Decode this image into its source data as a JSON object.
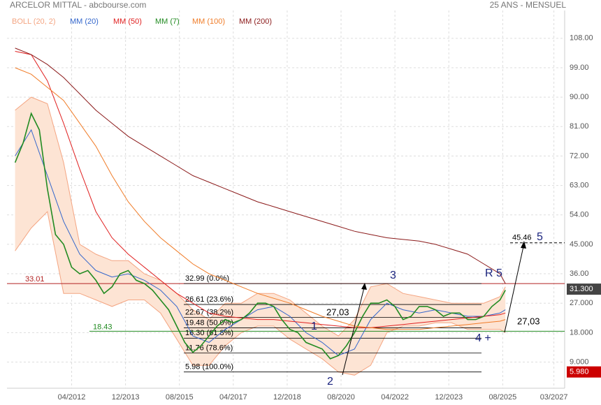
{
  "chart_data": {
    "type": "line",
    "title": "ARCELOR MITTAL - abcbourse.com",
    "subtitle": "25 ANS - MENSUEL",
    "xlim": [
      "2010-04",
      "2027-07"
    ],
    "ylim": [
      1,
      116.5
    ],
    "grid": true,
    "xticks": [
      {
        "value": "2012-04",
        "label": "04/2012"
      },
      {
        "value": "2013-12",
        "label": "12/2013"
      },
      {
        "value": "2015-08",
        "label": "08/2015"
      },
      {
        "value": "2017-04",
        "label": "04/2017"
      },
      {
        "value": "2018-12",
        "label": "12/2018"
      },
      {
        "value": "2020-08",
        "label": "08/2020"
      },
      {
        "value": "2022-04",
        "label": "04/2022"
      },
      {
        "value": "2023-12",
        "label": "12/2023"
      },
      {
        "value": "2025-08",
        "label": "08/2025"
      },
      {
        "value": "2027-03",
        "label": "03/2027"
      }
    ],
    "yticks": [
      {
        "value": 108,
        "label": "108.00"
      },
      {
        "value": 99,
        "label": "99.00"
      },
      {
        "value": 90,
        "label": "90.00"
      },
      {
        "value": 81,
        "label": "81.00"
      },
      {
        "value": 72,
        "label": "72.00"
      },
      {
        "value": 63,
        "label": "63.00"
      },
      {
        "value": 54,
        "label": "54.00"
      },
      {
        "value": 45,
        "label": "45.000"
      },
      {
        "value": 36,
        "label": "36.00"
      },
      {
        "value": 27,
        "label": "27.000"
      },
      {
        "value": 18,
        "label": "18.000"
      },
      {
        "value": 9,
        "label": "9.000"
      }
    ],
    "band": {
      "name": "BOLL (20, 2)",
      "color": "#f4a582",
      "fill": "#fde4d4",
      "x": [
        "2010-07",
        "2011-01",
        "2011-07",
        "2012-01",
        "2012-07",
        "2013-01",
        "2013-07",
        "2014-01",
        "2014-07",
        "2015-01",
        "2015-07",
        "2016-01",
        "2016-07",
        "2017-01",
        "2017-07",
        "2018-01",
        "2018-07",
        "2019-01",
        "2019-07",
        "2020-01",
        "2020-07",
        "2021-01",
        "2021-07",
        "2022-01",
        "2022-07",
        "2023-01",
        "2023-07",
        "2024-01",
        "2024-07",
        "2025-01",
        "2025-07",
        "2025-09"
      ],
      "upper": [
        86,
        90,
        88,
        70,
        45,
        42,
        40,
        40,
        36,
        34,
        30,
        25,
        22,
        27,
        27,
        30,
        30,
        28,
        24,
        20,
        17,
        22,
        32,
        33,
        30,
        29,
        28,
        27,
        27,
        27,
        29,
        32
      ],
      "lower": [
        43,
        50,
        55,
        30,
        30,
        28,
        26,
        28,
        28,
        24,
        16,
        8,
        8,
        14,
        18,
        20,
        20,
        16,
        13,
        10,
        6,
        5,
        8,
        18,
        20,
        20,
        21,
        21,
        19,
        19,
        19,
        18
      ]
    },
    "series": [
      {
        "name": "MM (20)",
        "color": "#3366cc",
        "x": [
          "2010-07",
          "2011-01",
          "2011-07",
          "2012-01",
          "2012-07",
          "2013-01",
          "2013-07",
          "2014-01",
          "2014-07",
          "2015-01",
          "2015-07",
          "2016-01",
          "2016-07",
          "2017-01",
          "2017-07",
          "2018-01",
          "2018-07",
          "2019-01",
          "2019-07",
          "2020-01",
          "2020-07",
          "2021-01",
          "2021-07",
          "2022-01",
          "2022-07",
          "2023-01",
          "2023-07",
          "2024-01",
          "2024-07",
          "2025-01",
          "2025-07",
          "2025-09"
        ],
        "values": [
          72,
          80,
          66,
          52,
          42,
          37,
          35,
          36,
          34,
          31,
          26,
          17,
          15,
          19,
          22,
          25,
          26,
          23,
          18,
          15,
          11,
          13,
          22,
          27,
          25,
          24,
          25,
          24,
          23,
          23,
          24,
          25
        ]
      },
      {
        "name": "MM (50)",
        "color": "#e02020",
        "x": [
          "2010-07",
          "2011-01",
          "2011-07",
          "2012-01",
          "2012-07",
          "2013-01",
          "2013-07",
          "2014-01",
          "2014-07",
          "2015-01",
          "2015-07",
          "2016-01",
          "2016-07",
          "2017-01",
          "2017-07",
          "2018-01",
          "2018-07",
          "2019-01",
          "2019-07",
          "2020-01",
          "2020-07",
          "2021-01",
          "2021-07",
          "2022-01",
          "2022-07",
          "2023-01",
          "2023-07",
          "2024-01",
          "2024-07",
          "2025-01",
          "2025-07",
          "2025-09"
        ],
        "values": [
          104,
          103,
          95,
          82,
          68,
          55,
          47,
          42,
          38,
          34,
          30,
          27,
          24,
          23,
          22.5,
          22,
          22,
          21.5,
          21,
          20.5,
          20,
          19.5,
          19.5,
          20,
          20.5,
          21,
          21.5,
          22,
          22.5,
          23,
          23.5,
          24
        ]
      },
      {
        "name": "MM (7)",
        "color": "#228b22",
        "x": [
          "2010-07",
          "2010-10",
          "2011-01",
          "2011-04",
          "2011-07",
          "2011-10",
          "2012-01",
          "2012-04",
          "2012-07",
          "2012-10",
          "2013-01",
          "2013-04",
          "2013-07",
          "2013-10",
          "2014-01",
          "2014-04",
          "2014-07",
          "2014-10",
          "2015-01",
          "2015-04",
          "2015-07",
          "2015-10",
          "2016-01",
          "2016-04",
          "2016-07",
          "2016-10",
          "2017-01",
          "2017-04",
          "2017-07",
          "2017-10",
          "2018-01",
          "2018-04",
          "2018-07",
          "2018-10",
          "2019-01",
          "2019-04",
          "2019-07",
          "2019-10",
          "2020-01",
          "2020-04",
          "2020-07",
          "2020-10",
          "2021-01",
          "2021-04",
          "2021-07",
          "2021-10",
          "2022-01",
          "2022-04",
          "2022-07",
          "2022-10",
          "2023-01",
          "2023-04",
          "2023-07",
          "2023-10",
          "2024-01",
          "2024-04",
          "2024-07",
          "2024-10",
          "2025-01",
          "2025-04",
          "2025-07",
          "2025-09"
        ],
        "values": [
          70,
          76,
          85,
          80,
          62,
          48,
          45,
          38,
          36,
          37,
          34,
          30,
          32,
          36,
          37,
          34,
          33,
          31,
          28,
          25,
          20,
          15,
          12,
          14,
          17,
          20,
          22,
          21,
          22,
          24,
          27,
          27,
          26,
          22,
          19,
          18,
          15,
          14,
          13,
          10,
          11,
          14,
          18,
          23,
          27,
          27,
          28,
          26,
          22,
          23,
          26,
          26,
          25,
          23,
          24,
          24,
          22,
          22,
          23,
          26,
          28,
          31
        ]
      },
      {
        "name": "MM (100)",
        "color": "#f07c28",
        "x": [
          "2010-07",
          "2011-01",
          "2011-07",
          "2012-01",
          "2012-07",
          "2013-01",
          "2013-07",
          "2014-01",
          "2014-07",
          "2015-01",
          "2015-07",
          "2016-01",
          "2016-07",
          "2017-01",
          "2017-07",
          "2018-01",
          "2018-07",
          "2019-01",
          "2019-07",
          "2020-01",
          "2020-07",
          "2021-01",
          "2021-07",
          "2022-01",
          "2022-07",
          "2023-01",
          "2023-07",
          "2024-01",
          "2024-07",
          "2025-01",
          "2025-07",
          "2025-09"
        ],
        "values": [
          99,
          97,
          93,
          89,
          82,
          75,
          66,
          58,
          52,
          47,
          43,
          39,
          36,
          34,
          32,
          30,
          28.5,
          27,
          25,
          23,
          21.5,
          20,
          19.5,
          19,
          19,
          19,
          19.5,
          20,
          20.5,
          21,
          21.5,
          22
        ]
      },
      {
        "name": "MM (200)",
        "color": "#8b1a1a",
        "x": [
          "2010-07",
          "2011-01",
          "2011-07",
          "2012-01",
          "2012-07",
          "2013-01",
          "2013-07",
          "2014-01",
          "2014-07",
          "2015-01",
          "2015-07",
          "2016-01",
          "2016-07",
          "2017-01",
          "2017-07",
          "2018-01",
          "2018-07",
          "2019-01",
          "2019-07",
          "2020-01",
          "2020-07",
          "2021-01",
          "2021-07",
          "2022-01",
          "2022-07",
          "2023-01",
          "2023-07",
          "2024-01",
          "2024-07",
          "2025-01",
          "2025-07",
          "2025-09"
        ],
        "values": [
          105,
          103,
          100,
          96,
          91,
          86,
          82,
          78,
          75,
          72,
          69,
          66,
          64,
          62,
          60,
          58,
          56.5,
          55,
          53.5,
          52,
          50.5,
          49,
          48,
          47,
          46.5,
          46,
          45,
          43.5,
          42,
          39,
          36,
          33
        ]
      }
    ],
    "levels": [
      {
        "value": 33.01,
        "label": "33.01",
        "color": "#b22222",
        "style": "solid"
      },
      {
        "value": 18.43,
        "label": "18.43",
        "color": "#228b22",
        "style": "solid"
      },
      {
        "value": 45.46,
        "label": "45.46",
        "color": "#000000",
        "style": "dashed"
      }
    ],
    "fibonacci": [
      {
        "value": 32.99,
        "label": "32.99  (0.0%)"
      },
      {
        "value": 26.61,
        "label": "26.61  (23.6%)"
      },
      {
        "value": 22.67,
        "label": "22.67  (38.2%)"
      },
      {
        "value": 19.48,
        "label": "19.48  (50.0%)"
      },
      {
        "value": 16.3,
        "label": "16.30  (61.8%)"
      },
      {
        "value": 11.76,
        "label": "11.76  (78.6%)"
      },
      {
        "value": 5.98,
        "label": "5.98  (100.0%)"
      }
    ],
    "annotations": [
      "1",
      "2",
      "3",
      "4 +",
      "5",
      "R 5",
      "27,03",
      "27,03"
    ],
    "price_tags": [
      {
        "value": 31.3,
        "label": "31.300",
        "color": "#444444"
      },
      {
        "value": 5.98,
        "label": "5.980",
        "color": "#cc0000"
      }
    ]
  }
}
